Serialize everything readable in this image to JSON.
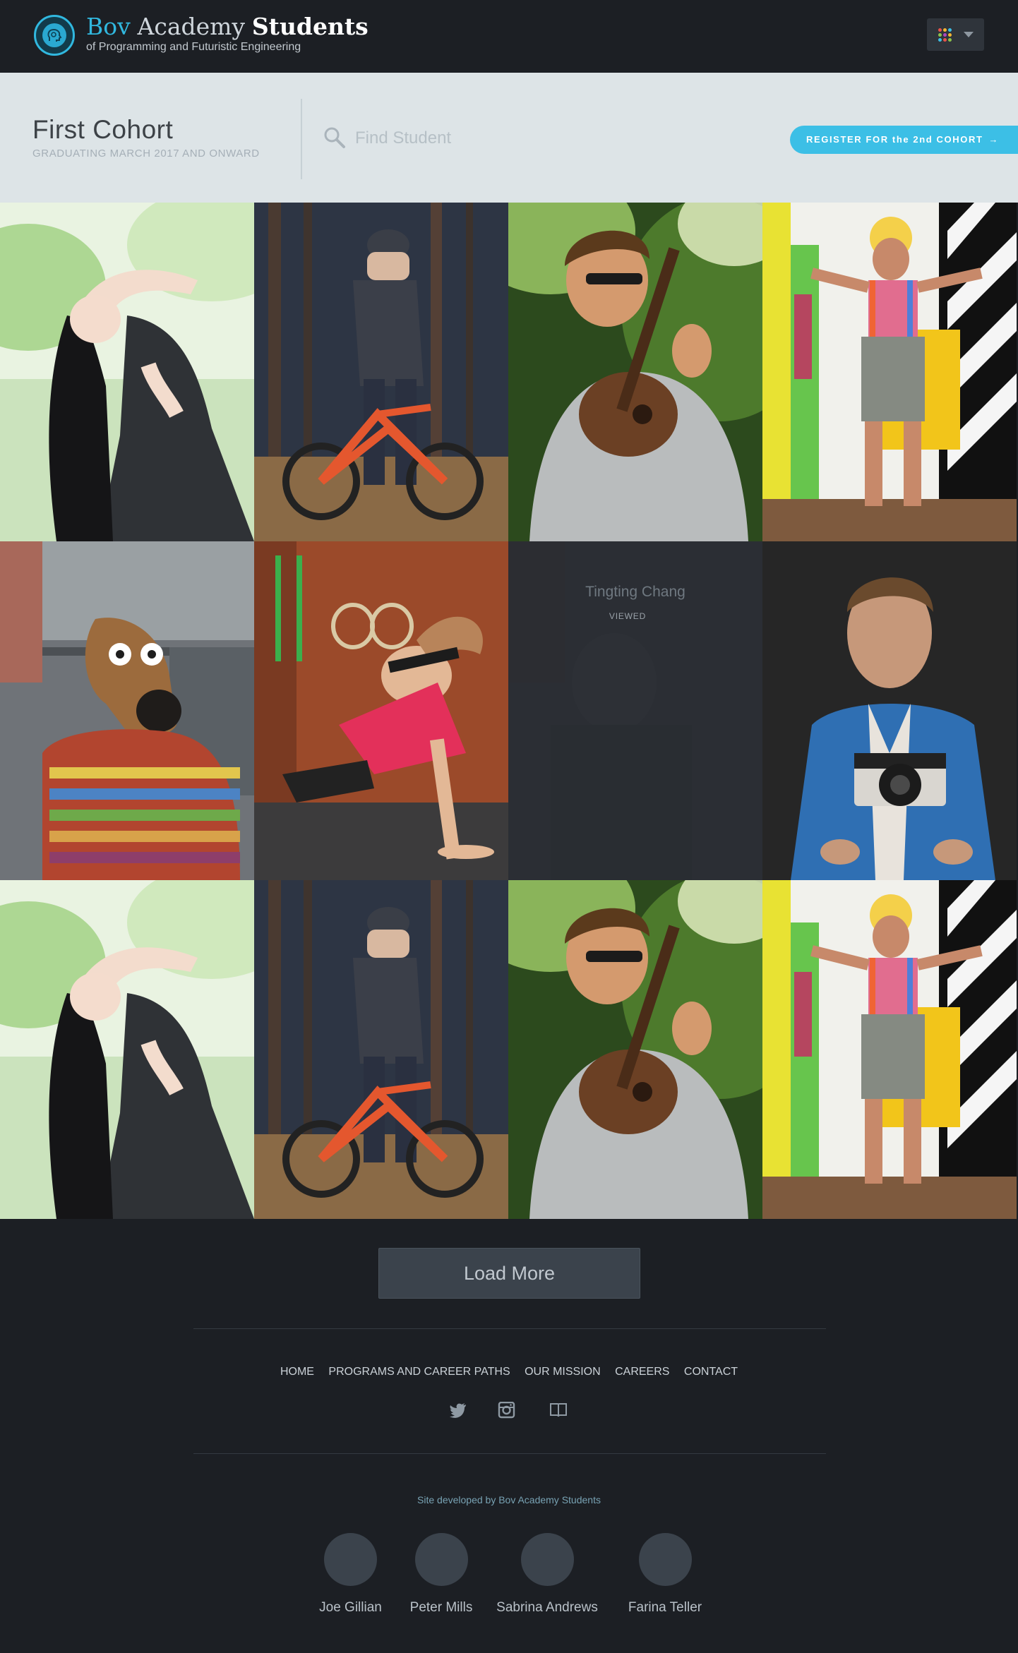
{
  "header": {
    "brand_part1": "Bov",
    "brand_part2": "Academy",
    "brand_part3": "Students",
    "tagline": "of Programming and Futuristic Engineering",
    "logo_icon": "head-gear-logo-icon",
    "apps_menu_icon": "apps-grid-icon"
  },
  "cohort": {
    "title": "First Cohort",
    "subtitle": "GRADUATING MARCH 2017 AND ONWARD",
    "search_placeholder": "Find Student",
    "register_label": "REGISTER FOR the 2nd COHORT",
    "register_arrow": "→"
  },
  "grid": {
    "overlay": {
      "name": "Tingting Chang",
      "status": "VIEWED"
    }
  },
  "footer": {
    "load_more": "Load More",
    "nav": [
      "HOME",
      "PROGRAMS AND CAREER PATHS",
      "OUR MISSION",
      "CAREERS",
      "CONTACT"
    ],
    "social_icons": [
      "twitter-icon",
      "instagram-icon",
      "book-icon"
    ],
    "credit": "Site developed by Bov Academy Students",
    "developers": [
      "Joe Gillian",
      "Peter Mills",
      "Sabrina Andrews",
      "Farina Teller"
    ]
  },
  "colors": {
    "accent": "#3cbfe6",
    "dark_bg": "#1c1f24",
    "cohort_bg": "#dde4e7",
    "button_bg": "#3b434c"
  }
}
